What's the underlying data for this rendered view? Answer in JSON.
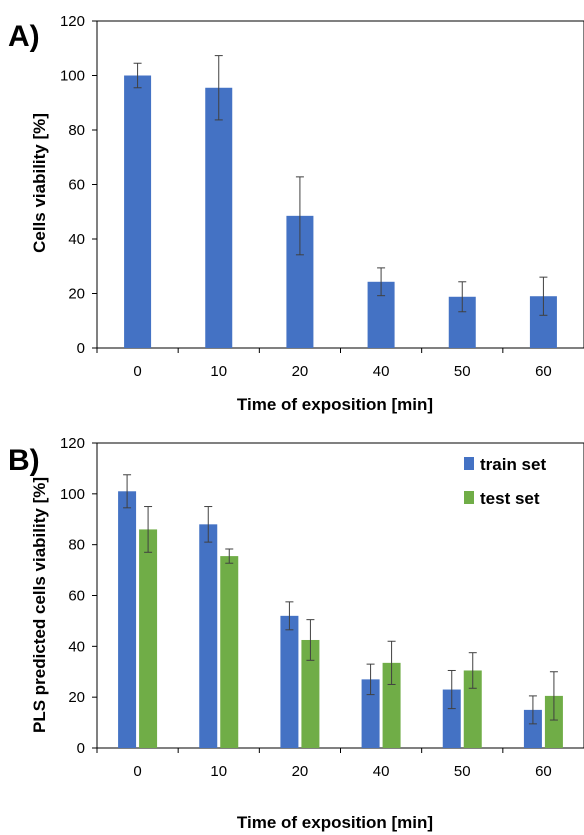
{
  "chart_data": [
    {
      "type": "bar",
      "panel_label": "A)",
      "categories": [
        "0",
        "10",
        "20",
        "40",
        "50",
        "60"
      ],
      "series": [
        {
          "values": [
            100,
            95.5,
            48.5,
            24.3,
            18.8,
            19
          ],
          "errors": [
            4.5,
            11.8,
            14.3,
            5.1,
            5.5,
            7
          ]
        }
      ],
      "colors": [
        "#4472c4"
      ],
      "xlabel": "Time of exposition [min]",
      "ylabel": "Cells viability [%]",
      "ylim": [
        0,
        120
      ],
      "yticks": [
        0,
        20,
        40,
        60,
        80,
        100,
        120
      ],
      "grid": false
    },
    {
      "type": "bar",
      "panel_label": "B)",
      "categories": [
        "0",
        "10",
        "20",
        "40",
        "50",
        "60"
      ],
      "series": [
        {
          "name": "train set",
          "values": [
            101,
            88,
            52,
            27,
            23,
            15
          ],
          "errors": [
            6.5,
            7,
            5.5,
            6,
            7.5,
            5.5
          ]
        },
        {
          "name": "test set",
          "values": [
            86,
            75.5,
            42.5,
            33.5,
            30.5,
            20.5
          ],
          "errors": [
            9,
            2.8,
            8,
            8.5,
            7,
            9.5
          ]
        }
      ],
      "colors": [
        "#4472c4",
        "#70ad47"
      ],
      "legend": "top-right",
      "xlabel": "Time of exposition [min]",
      "ylabel": "PLS predicted cells viability [%]",
      "ylim": [
        0,
        120
      ],
      "yticks": [
        0,
        20,
        40,
        60,
        80,
        100,
        120
      ],
      "grid": false
    }
  ]
}
